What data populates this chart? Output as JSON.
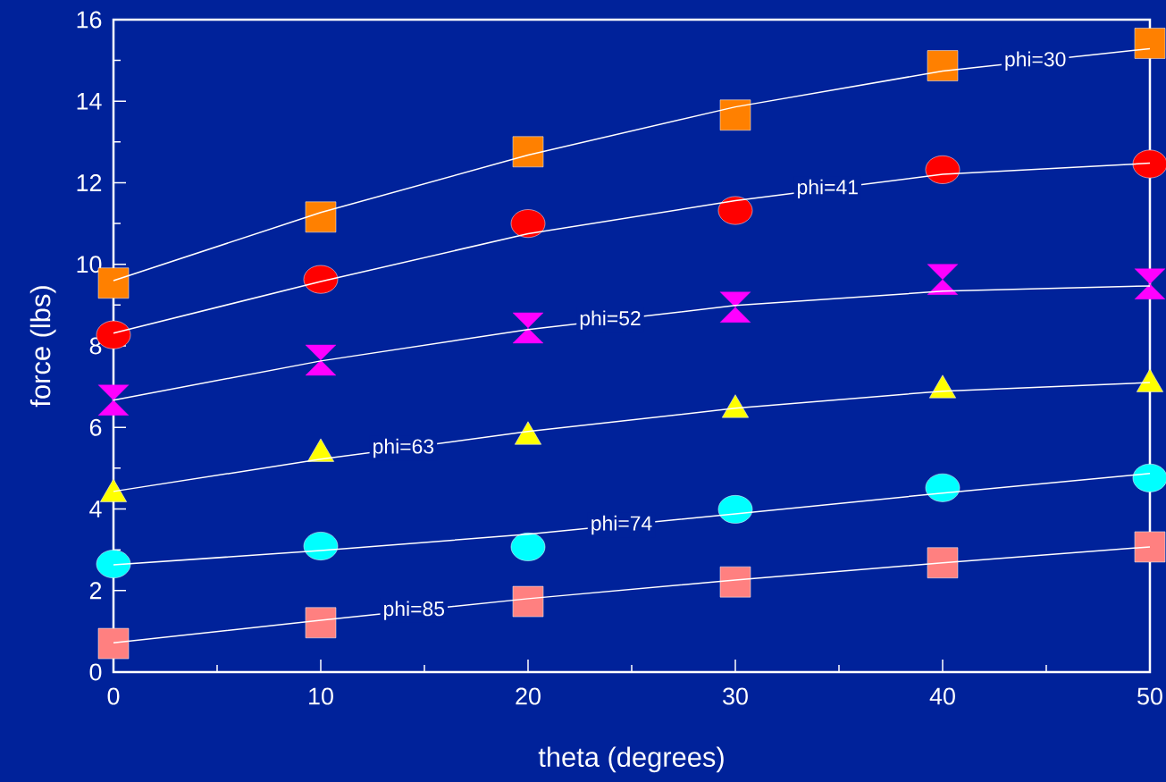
{
  "chart_data": {
    "type": "scatter",
    "xlabel": "theta (degrees)",
    "ylabel": "force (lbs)",
    "x": [
      0,
      10,
      20,
      30,
      40,
      50
    ],
    "xlim": [
      0,
      50
    ],
    "ylim": [
      0,
      16
    ],
    "xticks": [
      0,
      10,
      20,
      30,
      40,
      50
    ],
    "yticks": [
      0,
      2,
      4,
      6,
      8,
      10,
      12,
      14,
      16
    ],
    "grid": false,
    "legend": false,
    "series": [
      {
        "marker": "square",
        "color": "#ff8000",
        "values": [
          9.54,
          11.16,
          12.76,
          13.66,
          14.87,
          15.42
        ]
      },
      {
        "marker": "circle",
        "color": "#ff0000",
        "values": [
          8.27,
          9.63,
          11.0,
          11.32,
          12.32,
          12.46
        ]
      },
      {
        "color": "#ff00ff",
        "values": [
          6.67,
          7.65,
          8.44,
          8.95,
          9.63,
          9.52
        ]
      },
      {
        "marker": "triangle",
        "color": "#ffff00",
        "values": [
          4.36,
          5.35,
          5.77,
          6.43,
          6.91,
          7.06
        ]
      },
      {
        "marker": "circle",
        "color": "#00ffff",
        "values": [
          2.65,
          3.09,
          3.07,
          3.99,
          4.52,
          4.76
        ]
      },
      {
        "marker": "square",
        "color": "#ff8080",
        "values": [
          0.7,
          1.21,
          1.73,
          2.21,
          2.68,
          3.07
        ]
      },
      {
        "type": "line",
        "name": "phi=30",
        "marker": "none",
        "color": "#ffffff",
        "values": [
          9.6,
          11.27,
          12.68,
          13.86,
          14.74,
          15.29
        ]
      },
      {
        "type": "line",
        "name": "phi=41",
        "marker": "none",
        "color": "#ffffff",
        "values": [
          8.31,
          9.58,
          10.75,
          11.56,
          12.21,
          12.48
        ]
      },
      {
        "type": "line",
        "name": "phi=52",
        "marker": "none",
        "color": "#ffffff",
        "values": [
          6.67,
          7.63,
          8.4,
          8.99,
          9.34,
          9.47
        ]
      },
      {
        "type": "line",
        "name": "phi=63",
        "marker": "none",
        "color": "#ffffff",
        "values": [
          4.43,
          5.22,
          5.9,
          6.47,
          6.89,
          7.1
        ]
      },
      {
        "type": "line",
        "name": "phi=74",
        "marker": "none",
        "color": "#ffffff",
        "values": [
          2.63,
          2.98,
          3.38,
          3.88,
          4.39,
          4.87
        ]
      },
      {
        "type": "line",
        "name": "phi=85",
        "marker": "none",
        "color": "#ffffff",
        "values": [
          0.72,
          1.27,
          1.8,
          2.26,
          2.68,
          3.07
        ]
      }
    ]
  }
}
